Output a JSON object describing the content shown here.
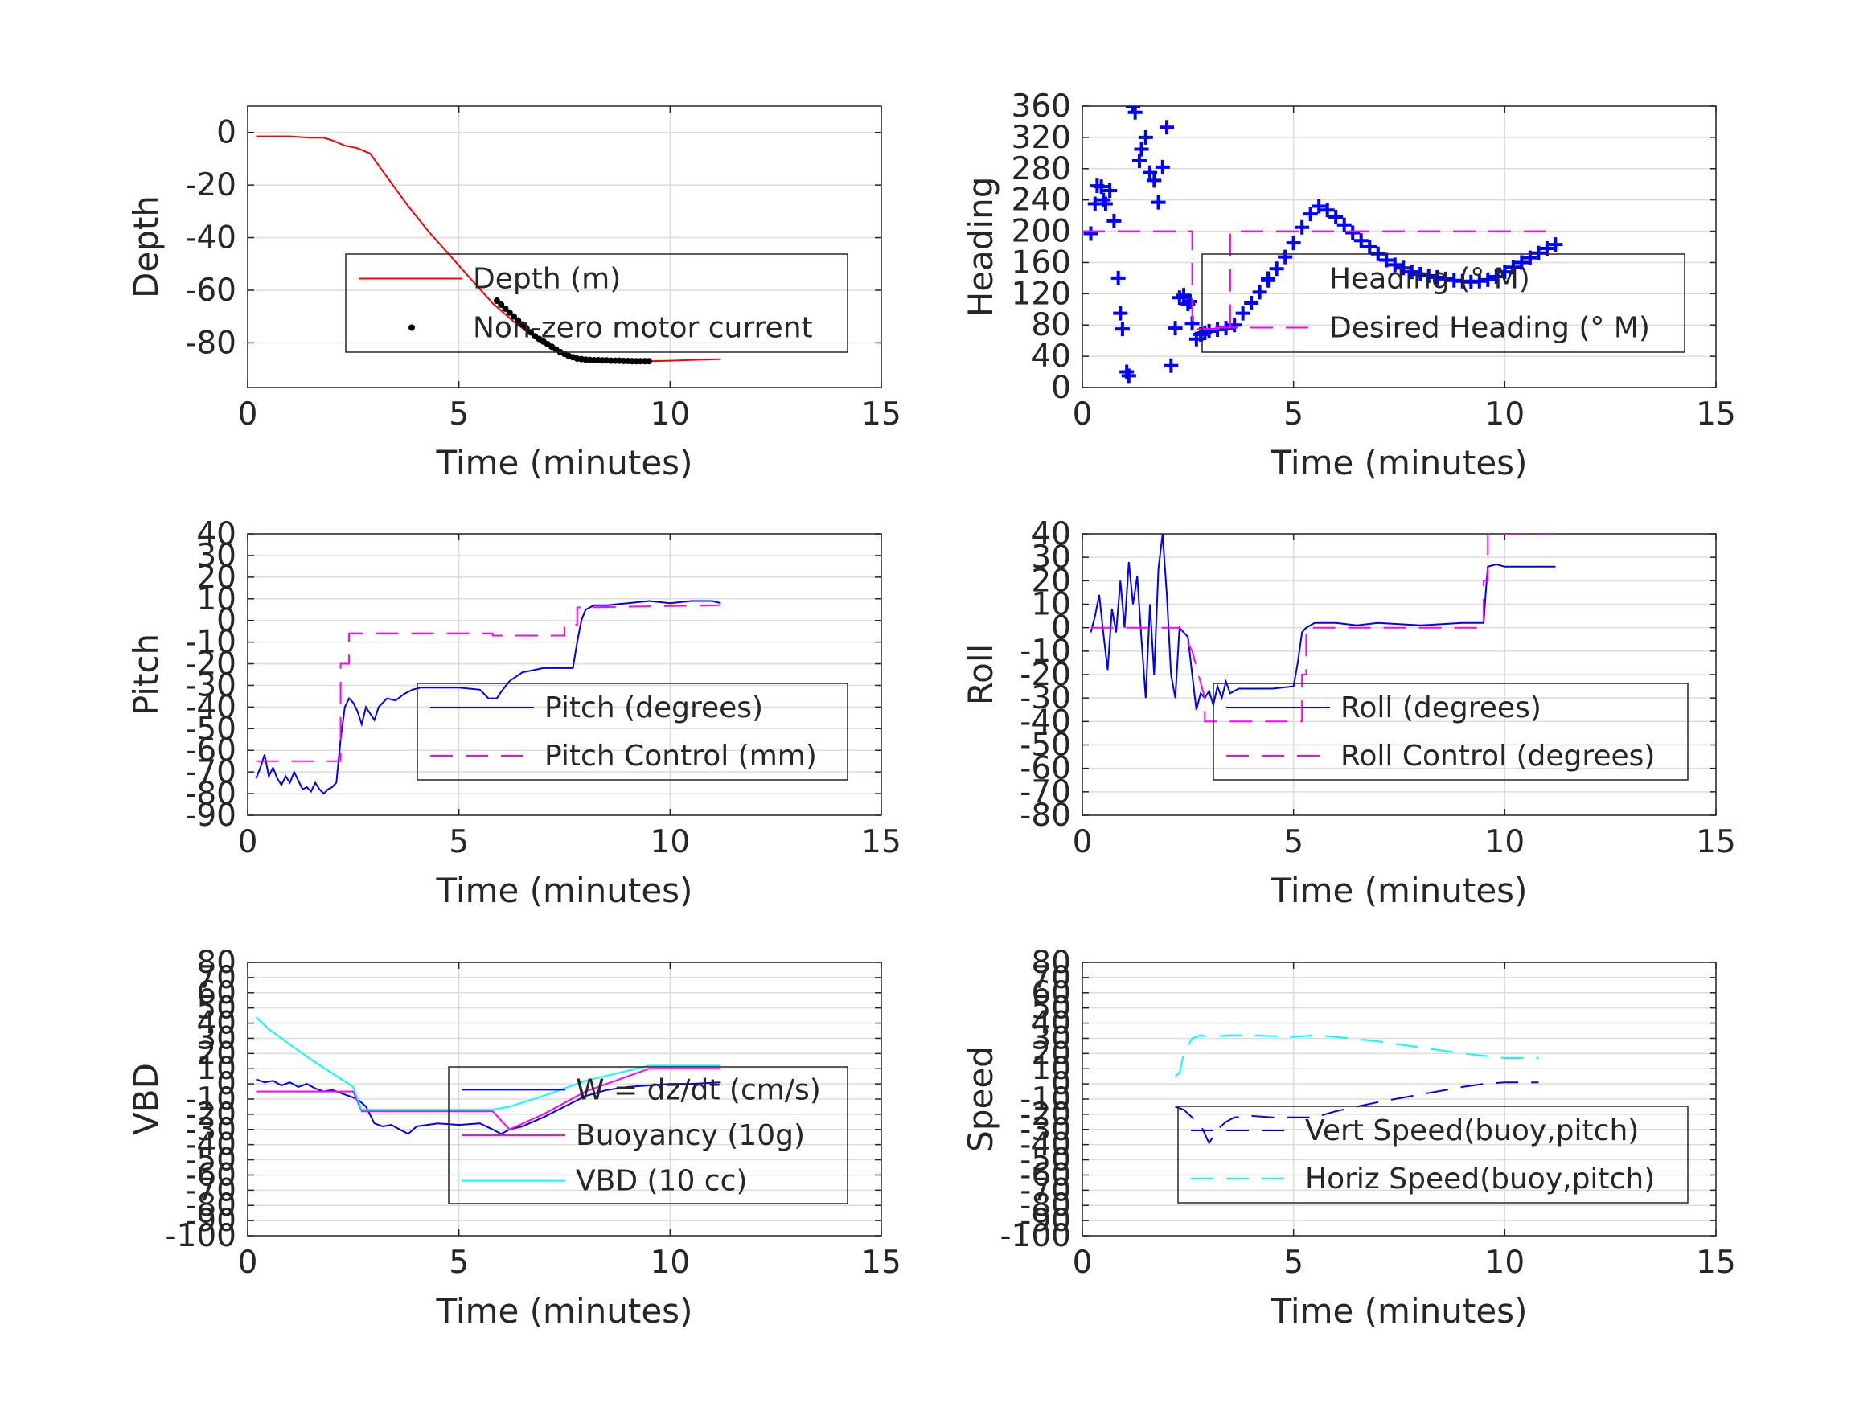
{
  "chart_data": [
    {
      "type": "line",
      "ylabel": "Depth",
      "xlabel": "Time (minutes)",
      "xlim": [
        0,
        15
      ],
      "ylim": [
        -97,
        10
      ],
      "xticks": [
        0,
        5,
        10,
        15
      ],
      "yticks": [
        0,
        -20,
        -40,
        -60,
        -80
      ],
      "grid": true,
      "legend_position": "center-right",
      "series": [
        {
          "name": "Depth (m)",
          "color": "#ff0000",
          "style": "solid",
          "x": [
            0.2,
            0.5,
            1.0,
            1.5,
            1.8,
            2.0,
            2.3,
            2.6,
            2.9,
            3.3,
            3.8,
            4.3,
            4.8,
            5.3,
            5.8,
            6.3,
            6.8,
            7.3,
            7.7,
            8.0,
            8.5,
            9.0,
            9.5,
            10.0,
            10.5,
            11.2
          ],
          "y": [
            -1.5,
            -1.5,
            -1.5,
            -2,
            -2,
            -3,
            -5,
            -6,
            -8,
            -17,
            -28,
            -38,
            -47,
            -56,
            -65,
            -72,
            -78,
            -83,
            -86,
            -86.5,
            -87,
            -87,
            -87,
            -86.8,
            -86.5,
            -86.2
          ]
        },
        {
          "name": "Non-zero motor current",
          "color": "#000000",
          "style": "dots",
          "x": [
            5.9,
            6.0,
            6.1,
            6.2,
            6.3,
            6.4,
            6.5,
            6.6,
            6.7,
            6.8,
            6.9,
            7.0,
            7.1,
            7.2,
            7.3,
            7.4,
            7.5,
            7.6,
            7.7,
            7.8,
            7.9,
            8.0,
            8.1,
            8.2,
            8.3,
            8.4,
            8.5,
            8.6,
            8.7,
            8.8,
            8.9,
            9.0,
            9.1,
            9.2,
            9.3,
            9.4,
            9.5
          ],
          "y": [
            -64,
            -65.5,
            -67,
            -68.5,
            -70,
            -71.5,
            -73,
            -74.5,
            -76,
            -77.5,
            -78.5,
            -79.5,
            -80.5,
            -81.5,
            -82.5,
            -83.5,
            -84.2,
            -85,
            -85.5,
            -86,
            -86.2,
            -86.4,
            -86.5,
            -86.6,
            -86.6,
            -86.7,
            -86.7,
            -86.8,
            -86.8,
            -86.8,
            -86.9,
            -86.9,
            -87,
            -87,
            -87,
            -87,
            -87
          ]
        }
      ]
    },
    {
      "type": "scatter",
      "ylabel": "Heading",
      "xlabel": "Time (minutes)",
      "xlim": [
        0,
        15
      ],
      "ylim": [
        0,
        360
      ],
      "xticks": [
        0,
        5,
        10,
        15
      ],
      "yticks": [
        0,
        40,
        80,
        120,
        160,
        200,
        240,
        280,
        320,
        360
      ],
      "grid": true,
      "legend_position": "center-right",
      "series": [
        {
          "name": "Heading (° M)",
          "color": "#0000ff",
          "style": "plus",
          "x": [
            0.2,
            0.3,
            0.35,
            0.45,
            0.5,
            0.55,
            0.65,
            0.75,
            0.85,
            0.9,
            0.95,
            1.05,
            1.1,
            1.2,
            1.25,
            1.35,
            1.4,
            1.5,
            1.6,
            1.7,
            1.8,
            1.9,
            2.0,
            2.1,
            2.2,
            2.3,
            2.4,
            2.5,
            2.55,
            2.6,
            2.7,
            2.8,
            2.9,
            3.0,
            3.2,
            3.4,
            3.6,
            3.8,
            4.0,
            4.2,
            4.4,
            4.6,
            4.8,
            5.0,
            5.2,
            5.4,
            5.6,
            5.8,
            6.0,
            6.2,
            6.4,
            6.6,
            6.8,
            7.0,
            7.2,
            7.4,
            7.6,
            7.8,
            8.0,
            8.2,
            8.4,
            8.6,
            8.8,
            9.0,
            9.2,
            9.4,
            9.6,
            9.8,
            10.0,
            10.2,
            10.4,
            10.6,
            10.8,
            11.0,
            11.2
          ],
          "y": [
            197,
            235,
            258,
            257,
            240,
            235,
            252,
            213,
            140,
            95,
            75,
            20,
            15,
            360,
            352,
            290,
            305,
            320,
            275,
            265,
            237,
            282,
            333,
            28,
            76,
            115,
            118,
            107,
            110,
            82,
            62,
            68,
            70,
            72,
            74,
            76,
            80,
            95,
            108,
            122,
            137,
            152,
            167,
            185,
            205,
            222,
            232,
            227,
            218,
            208,
            198,
            188,
            180,
            171,
            163,
            157,
            153,
            148,
            145,
            143,
            141,
            139,
            137,
            136,
            135,
            136,
            138,
            142,
            148,
            154,
            160,
            166,
            172,
            178,
            183
          ]
        },
        {
          "name": "Desired Heading (° M)",
          "color": "#ff00ff",
          "style": "dashed",
          "x": [
            0,
            2.6,
            2.6,
            3.5,
            3.5,
            11.2
          ],
          "y": [
            200,
            200,
            75,
            75,
            200,
            200
          ]
        }
      ]
    },
    {
      "type": "line",
      "ylabel": "Pitch",
      "xlabel": "Time (minutes)",
      "xlim": [
        0,
        15
      ],
      "ylim": [
        -90,
        40
      ],
      "xticks": [
        0,
        5,
        10,
        15
      ],
      "yticks": [
        40,
        30,
        20,
        10,
        0,
        -10,
        -20,
        -30,
        -40,
        -50,
        -60,
        -70,
        -80,
        -90
      ],
      "grid": true,
      "legend_position": "center-right",
      "series": [
        {
          "name": "Pitch (degrees)",
          "color": "#0000ff",
          "style": "solid",
          "x": [
            0.2,
            0.3,
            0.4,
            0.5,
            0.6,
            0.7,
            0.8,
            0.9,
            1.0,
            1.1,
            1.2,
            1.3,
            1.4,
            1.5,
            1.6,
            1.7,
            1.8,
            1.9,
            2.0,
            2.1,
            2.2,
            2.3,
            2.4,
            2.5,
            2.6,
            2.7,
            2.8,
            2.9,
            3.0,
            3.1,
            3.2,
            3.3,
            3.5,
            3.7,
            3.9,
            4.1,
            4.3,
            4.5,
            5.0,
            5.5,
            5.7,
            5.9,
            6.0,
            6.2,
            6.5,
            7.0,
            7.5,
            7.7,
            7.8,
            7.9,
            8.0,
            8.2,
            8.5,
            9.0,
            9.5,
            10.0,
            10.5,
            11.0,
            11.2
          ],
          "y": [
            -73,
            -68,
            -62,
            -72,
            -68,
            -73,
            -76,
            -72,
            -75,
            -70,
            -74,
            -78,
            -77,
            -79,
            -75,
            -78,
            -80,
            -78,
            -77,
            -75,
            -55,
            -40,
            -36,
            -38,
            -42,
            -48,
            -40,
            -43,
            -46,
            -40,
            -38,
            -36,
            -37,
            -34,
            -32,
            -31,
            -31,
            -31,
            -31,
            -32,
            -36,
            -36,
            -33,
            -28,
            -24,
            -22,
            -22,
            -22,
            -10,
            0,
            5,
            7,
            7,
            8,
            9,
            8,
            9,
            9,
            8
          ]
        },
        {
          "name": "Pitch Control (mm)",
          "color": "#ff00ff",
          "style": "dashed",
          "x": [
            0.2,
            2.2,
            2.2,
            2.4,
            2.4,
            5.8,
            5.8,
            7.5,
            7.5,
            7.8,
            7.8,
            11.2
          ],
          "y": [
            -65,
            -65,
            -20,
            -20,
            -6,
            -6,
            -7,
            -7,
            -2,
            -2,
            6,
            7
          ]
        }
      ]
    },
    {
      "type": "line",
      "ylabel": "Roll",
      "xlabel": "Time (minutes)",
      "xlim": [
        0,
        15
      ],
      "ylim": [
        -80,
        40
      ],
      "xticks": [
        0,
        5,
        10,
        15
      ],
      "yticks": [
        40,
        30,
        20,
        10,
        0,
        -10,
        -20,
        -30,
        -40,
        -50,
        -60,
        -70,
        -80
      ],
      "grid": true,
      "legend_position": "center-right",
      "series": [
        {
          "name": "Roll (degrees)",
          "color": "#0000ff",
          "style": "solid",
          "x": [
            0.2,
            0.3,
            0.4,
            0.5,
            0.6,
            0.7,
            0.8,
            0.9,
            1.0,
            1.1,
            1.2,
            1.3,
            1.4,
            1.5,
            1.6,
            1.7,
            1.8,
            1.9,
            2.0,
            2.1,
            2.2,
            2.3,
            2.4,
            2.5,
            2.6,
            2.7,
            2.8,
            2.9,
            3.0,
            3.1,
            3.2,
            3.3,
            3.4,
            3.5,
            3.6,
            3.7,
            3.8,
            4.0,
            4.5,
            5.0,
            5.1,
            5.2,
            5.3,
            5.5,
            5.8,
            6.0,
            6.5,
            7.0,
            8.0,
            9.0,
            9.5,
            9.55,
            9.6,
            9.8,
            10.0,
            11.2
          ],
          "y": [
            -2,
            5,
            14,
            -3,
            -18,
            8,
            -2,
            20,
            0,
            28,
            10,
            22,
            -5,
            -30,
            10,
            -20,
            25,
            40,
            14,
            -20,
            -30,
            0,
            -2,
            -4,
            -20,
            -35,
            -28,
            -30,
            -27,
            -33,
            -25,
            -30,
            -23,
            -28,
            -27,
            -26,
            -26,
            -26,
            -26,
            -25,
            -15,
            -2,
            0,
            2,
            2,
            2,
            1,
            2,
            1,
            2,
            2,
            15,
            26,
            27,
            26,
            26
          ]
        },
        {
          "name": "Roll Control (degrees)",
          "color": "#ff00ff",
          "style": "dashed",
          "x": [
            0.2,
            2.3,
            2.6,
            2.9,
            2.9,
            5.2,
            5.2,
            5.3,
            5.3,
            9.5,
            9.5,
            9.6,
            9.6,
            11.2
          ],
          "y": [
            0,
            0,
            -10,
            -30,
            -40,
            -40,
            -20,
            -20,
            0,
            0,
            20,
            20,
            40,
            40
          ]
        }
      ]
    },
    {
      "type": "line",
      "ylabel": "VBD",
      "xlabel": "Time (minutes)",
      "xlim": [
        0,
        15
      ],
      "ylim": [
        -100,
        80
      ],
      "xticks": [
        0,
        5,
        10,
        15
      ],
      "yticks": [
        "80",
        "70",
        "60",
        "50",
        "40",
        "30",
        "20",
        "10",
        "0",
        "-10",
        "-20",
        "-30",
        "-40",
        "-50",
        "-60",
        "-70",
        "-80",
        "-90",
        "-100"
      ],
      "grid": true,
      "legend_position": "center-right",
      "series": [
        {
          "name": "W = dz/dt (cm/s)",
          "color": "#0000ff",
          "style": "solid",
          "x": [
            0.2,
            0.4,
            0.6,
            0.8,
            1.0,
            1.2,
            1.4,
            1.6,
            1.8,
            2.0,
            2.2,
            2.4,
            2.6,
            2.8,
            3.0,
            3.2,
            3.4,
            3.6,
            3.8,
            4.0,
            4.5,
            5.0,
            5.5,
            5.8,
            6.0,
            6.2,
            6.5,
            7.0,
            7.5,
            8.0,
            8.5,
            9.0,
            9.5,
            10.0,
            10.5,
            11.2
          ],
          "y": [
            3,
            1,
            2,
            -1,
            1,
            -2,
            0,
            -3,
            -5,
            -4,
            -6,
            -8,
            -10,
            -15,
            -26,
            -28,
            -27,
            -30,
            -33,
            -28,
            -26,
            -27,
            -26,
            -30,
            -33,
            -30,
            -28,
            -22,
            -15,
            -8,
            -4,
            -2,
            -1,
            0,
            0,
            1
          ]
        },
        {
          "name": "Buoyancy (10g)",
          "color": "#ff00ff",
          "style": "solid",
          "x": [
            0.2,
            2.5,
            2.7,
            5.8,
            6.2,
            7.0,
            8.0,
            9.5,
            11.2
          ],
          "y": [
            -5,
            -5,
            -18,
            -18,
            -30,
            -20,
            -5,
            10,
            10
          ]
        },
        {
          "name": "VBD (10 cc)",
          "color": "#00ffff",
          "style": "solid",
          "x": [
            0.2,
            0.5,
            1.0,
            1.5,
            2.0,
            2.5,
            2.7,
            5.8,
            6.2,
            7.0,
            8.0,
            9.5,
            11.2
          ],
          "y": [
            44,
            36,
            26,
            16,
            7,
            -2,
            -17,
            -17,
            -15,
            -8,
            2,
            12,
            12
          ]
        }
      ]
    },
    {
      "type": "line",
      "ylabel": "Speed",
      "xlabel": "Time (minutes)",
      "xlim": [
        0,
        15
      ],
      "ylim": [
        -100,
        80
      ],
      "xticks": [
        0,
        5,
        10,
        15
      ],
      "yticks": [
        "80",
        "70",
        "60",
        "50",
        "40",
        "30",
        "20",
        "10",
        "0",
        "-10",
        "-20",
        "-30",
        "-40",
        "-50",
        "-60",
        "-70",
        "-80",
        "-90",
        "-100"
      ],
      "grid": true,
      "legend_position": "center-right",
      "series": [
        {
          "name": "Vert Speed(buoy,pitch)",
          "color": "#0000ff",
          "style": "dashed",
          "x": [
            2.2,
            2.4,
            2.6,
            2.8,
            3.0,
            3.2,
            3.4,
            3.6,
            4.0,
            4.5,
            5.0,
            5.5,
            6.0,
            6.5,
            7.0,
            8.0,
            9.0,
            9.5,
            10.0,
            10.5,
            10.8
          ],
          "y": [
            -15,
            -17,
            -22,
            -27,
            -39,
            -30,
            -25,
            -22,
            -21,
            -22,
            -22,
            -22,
            -18,
            -15,
            -12,
            -7,
            -2,
            0,
            1,
            1,
            1
          ]
        },
        {
          "name": "Horiz Speed(buoy,pitch)",
          "color": "#00ffff",
          "style": "dashed",
          "x": [
            2.2,
            2.3,
            2.4,
            2.6,
            2.8,
            3.0,
            3.5,
            4.0,
            5.0,
            5.5,
            6.0,
            7.0,
            8.0,
            9.0,
            10.0,
            10.5,
            10.8
          ],
          "y": [
            5,
            7,
            20,
            30,
            32,
            31,
            32,
            32,
            31,
            32,
            31,
            28,
            24,
            20,
            17,
            17,
            17
          ]
        }
      ]
    }
  ]
}
